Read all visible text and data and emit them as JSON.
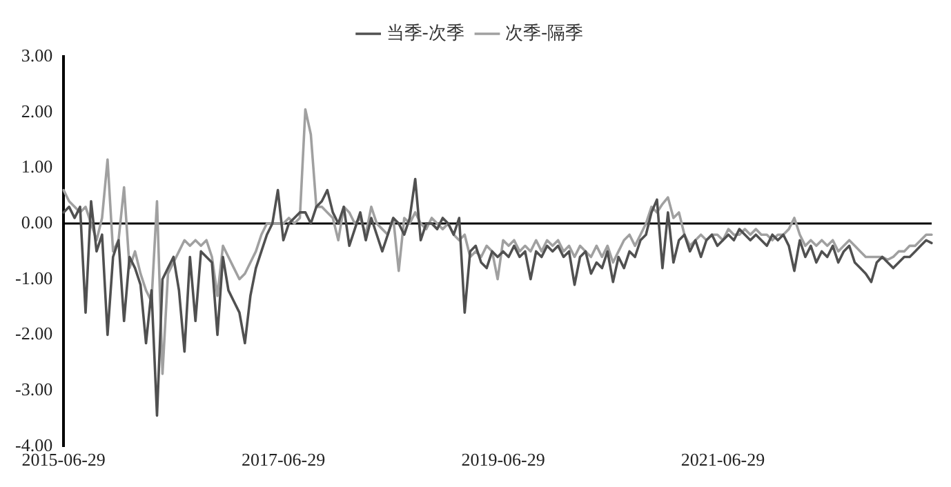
{
  "chart_data": {
    "type": "line",
    "categories": [
      "2015-06-29",
      null,
      null,
      null,
      null,
      null,
      null,
      null,
      null,
      null,
      null,
      null,
      null,
      null,
      null,
      null,
      null,
      null,
      null,
      null,
      null,
      null,
      null,
      null,
      null,
      null,
      null,
      null,
      null,
      null,
      null,
      null,
      null,
      null,
      null,
      null,
      null,
      null,
      null,
      null,
      "2017-06-29",
      null,
      null,
      null,
      null,
      null,
      null,
      null,
      null,
      null,
      null,
      null,
      null,
      null,
      null,
      null,
      null,
      null,
      null,
      null,
      null,
      null,
      null,
      null,
      null,
      null,
      null,
      null,
      null,
      null,
      null,
      null,
      null,
      null,
      null,
      null,
      null,
      null,
      null,
      null,
      "2019-06-29",
      null,
      null,
      null,
      null,
      null,
      null,
      null,
      null,
      null,
      null,
      null,
      null,
      null,
      null,
      null,
      null,
      null,
      null,
      null,
      null,
      null,
      null,
      null,
      null,
      null,
      null,
      null,
      null,
      null,
      null,
      null,
      null,
      null,
      null,
      null,
      null,
      null,
      null,
      null,
      "2021-06-29",
      null,
      null,
      null,
      null,
      null,
      null,
      null,
      null,
      null,
      null,
      null,
      null,
      null,
      null,
      null,
      null,
      null,
      null,
      null,
      null,
      null,
      null,
      null,
      null,
      null,
      null,
      null,
      null,
      null,
      null,
      null,
      null,
      null,
      null,
      null,
      null,
      null,
      null
    ],
    "series": [
      {
        "name": "当季-次季",
        "color": "#505050",
        "values": [
          0.2,
          0.3,
          0.1,
          0.3,
          -1.6,
          0.4,
          -0.5,
          -0.2,
          -2.0,
          -0.6,
          -0.3,
          -1.75,
          -0.6,
          -0.8,
          -1.1,
          -2.15,
          -1.2,
          -3.45,
          -1.0,
          -0.8,
          -0.6,
          -1.2,
          -2.3,
          -0.6,
          -1.75,
          -0.5,
          -0.6,
          -0.7,
          -2.0,
          -0.6,
          -1.2,
          -1.4,
          -1.6,
          -2.15,
          -1.3,
          -0.8,
          -0.5,
          -0.2,
          0.0,
          0.6,
          -0.3,
          0.0,
          0.1,
          0.2,
          0.2,
          0.0,
          0.3,
          0.4,
          0.6,
          0.2,
          0.0,
          0.3,
          -0.4,
          -0.1,
          0.2,
          -0.3,
          0.1,
          -0.2,
          -0.5,
          -0.2,
          0.1,
          0.0,
          -0.2,
          0.1,
          0.8,
          -0.3,
          0.0,
          0.0,
          -0.1,
          0.1,
          0.0,
          -0.2,
          0.1,
          -1.6,
          -0.5,
          -0.4,
          -0.7,
          -0.8,
          -0.5,
          -0.6,
          -0.5,
          -0.6,
          -0.4,
          -0.6,
          -0.5,
          -1.0,
          -0.5,
          -0.6,
          -0.4,
          -0.5,
          -0.4,
          -0.6,
          -0.5,
          -1.1,
          -0.6,
          -0.5,
          -0.9,
          -0.7,
          -0.8,
          -0.5,
          -1.05,
          -0.6,
          -0.8,
          -0.5,
          -0.6,
          -0.3,
          -0.2,
          0.2,
          0.43,
          -0.8,
          0.2,
          -0.7,
          -0.3,
          -0.2,
          -0.5,
          -0.3,
          -0.6,
          -0.3,
          -0.2,
          -0.4,
          -0.3,
          -0.2,
          -0.3,
          -0.1,
          -0.2,
          -0.3,
          -0.2,
          -0.3,
          -0.4,
          -0.2,
          -0.3,
          -0.2,
          -0.4,
          -0.85,
          -0.3,
          -0.6,
          -0.4,
          -0.7,
          -0.5,
          -0.6,
          -0.4,
          -0.7,
          -0.5,
          -0.4,
          -0.7,
          -0.8,
          -0.9,
          -1.05,
          -0.7,
          -0.6,
          -0.7,
          -0.8,
          -0.7,
          -0.6,
          -0.6,
          -0.5,
          -0.4,
          -0.3,
          -0.35
        ]
      },
      {
        "name": "次季-隔季",
        "color": "#a0a0a0",
        "values": [
          0.6,
          0.4,
          0.3,
          0.2,
          0.3,
          0.0,
          -0.3,
          0.1,
          1.15,
          -0.5,
          -0.3,
          0.65,
          -0.8,
          -0.5,
          -0.9,
          -1.2,
          -1.4,
          0.4,
          -2.7,
          -0.9,
          -0.7,
          -0.5,
          -0.3,
          -0.4,
          -0.3,
          -0.4,
          -0.3,
          -0.6,
          -1.3,
          -0.4,
          -0.6,
          -0.8,
          -1.0,
          -0.9,
          -0.7,
          -0.5,
          -0.2,
          0.0,
          0.0,
          0.0,
          0.0,
          0.1,
          0.0,
          0.1,
          2.05,
          1.6,
          0.3,
          0.3,
          0.2,
          0.1,
          -0.3,
          0.3,
          0.2,
          0.0,
          0.1,
          -0.2,
          0.3,
          0.0,
          -0.1,
          -0.2,
          0.1,
          -0.85,
          0.1,
          0.0,
          0.2,
          0.0,
          -0.1,
          0.1,
          0.0,
          -0.1,
          0.0,
          -0.2,
          -0.3,
          -0.2,
          -0.6,
          -0.5,
          -0.6,
          -0.4,
          -0.5,
          -1.0,
          -0.3,
          -0.4,
          -0.3,
          -0.5,
          -0.4,
          -0.5,
          -0.3,
          -0.5,
          -0.3,
          -0.4,
          -0.3,
          -0.5,
          -0.4,
          -0.6,
          -0.4,
          -0.5,
          -0.6,
          -0.4,
          -0.6,
          -0.4,
          -0.7,
          -0.5,
          -0.3,
          -0.2,
          -0.4,
          -0.2,
          0.0,
          0.3,
          0.2,
          0.35,
          0.47,
          0.1,
          0.2,
          -0.2,
          -0.4,
          -0.3,
          -0.2,
          -0.3,
          -0.2,
          -0.2,
          -0.3,
          -0.1,
          -0.2,
          -0.2,
          -0.1,
          -0.2,
          -0.1,
          -0.2,
          -0.2,
          -0.3,
          -0.2,
          -0.2,
          -0.1,
          0.1,
          -0.2,
          -0.4,
          -0.3,
          -0.4,
          -0.3,
          -0.4,
          -0.3,
          -0.5,
          -0.4,
          -0.3,
          -0.4,
          -0.5,
          -0.6,
          -0.6,
          -0.6,
          -0.6,
          -0.65,
          -0.6,
          -0.5,
          -0.5,
          -0.4,
          -0.4,
          -0.3,
          -0.2,
          -0.2
        ]
      }
    ],
    "ylim": [
      -4,
      3
    ],
    "yticks": [
      {
        "value": -4,
        "label": "-4.00"
      },
      {
        "value": -3,
        "label": "-3.00"
      },
      {
        "value": -2,
        "label": "-2.00"
      },
      {
        "value": -1,
        "label": "-1.00"
      },
      {
        "value": 0,
        "label": "0.00"
      },
      {
        "value": 1,
        "label": "1.00"
      },
      {
        "value": 2,
        "label": "2.00"
      },
      {
        "value": 3,
        "label": "3.00"
      }
    ],
    "ref_lines": [
      {
        "axis": "y",
        "value": 0,
        "color": "#000000"
      }
    ],
    "legend": "top",
    "marker": "none",
    "line_style": "solid",
    "grid": false
  }
}
